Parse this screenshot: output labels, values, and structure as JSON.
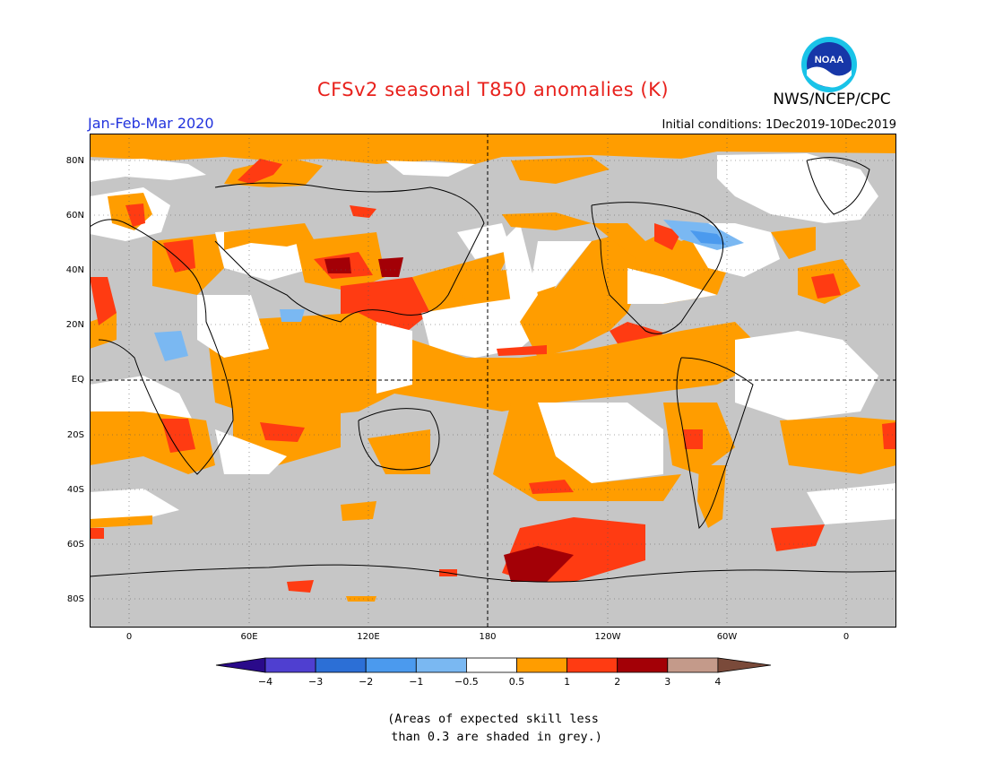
{
  "title": "CFSv2 seasonal T850 anomalies (K)",
  "organization": "NWS/NCEP/CPC",
  "logo_text": "NOAA",
  "season": "Jan-Feb-Mar 2020",
  "initial_conditions": "Initial conditions: 1Dec2019-10Dec2019",
  "map": {
    "lat_ticks": [
      "80N",
      "60N",
      "40N",
      "20N",
      "EQ",
      "20S",
      "40S",
      "60S",
      "80S"
    ],
    "lon_ticks": [
      "0",
      "60E",
      "120E",
      "180",
      "120W",
      "60W",
      "0"
    ]
  },
  "colorbar": {
    "labels": [
      "-4",
      "-3",
      "-2",
      "-1",
      "-0.5",
      "0.5",
      "1",
      "2",
      "3",
      "4"
    ],
    "colors": [
      "#2a0a8a",
      "#4f3fd0",
      "#2c6fd6",
      "#4b9aee",
      "#7ab8f2",
      "#ffffff",
      "#ff9d00",
      "#ff3b12",
      "#a30006",
      "#c49a8a",
      "#7a4a3a"
    ]
  },
  "note": {
    "line1": "(Areas of expected skill less",
    "line2": " than 0.3 are shaded in grey.)"
  }
}
